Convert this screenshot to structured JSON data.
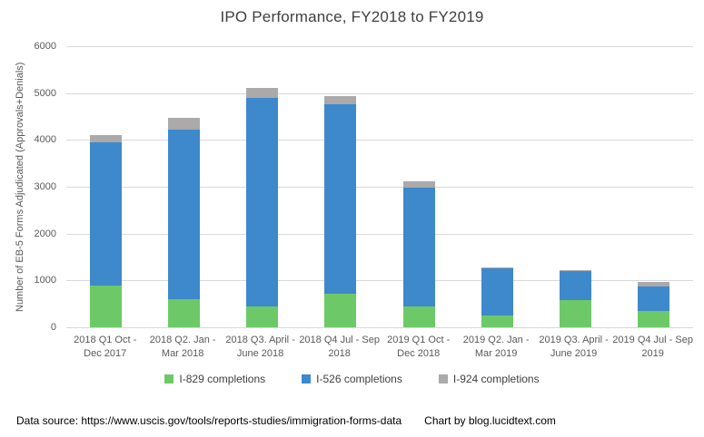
{
  "title": "IPO Performance, FY2018 to FY2019",
  "footer": {
    "data_source": "Data source: https://www.uscis.gov/tools/reports-studies/immigration-forms-data",
    "credit": "Chart by blog.lucidtext.com"
  },
  "colors": {
    "i829_green": "#6DC967",
    "i526_blue": "#3E88CC",
    "i924_gray": "#ABA9A9",
    "gridline": "#D9D9D9",
    "axis_text": "#595959",
    "title_text": "#404040"
  },
  "chart_data": {
    "type": "bar",
    "stacked": true,
    "title": "IPO Performance, FY2018 to FY2019",
    "xlabel": "",
    "ylabel": "Number  of EB-5 Forms Adjudicated (Approvals+Denials)",
    "ylim": [
      0,
      6000
    ],
    "y_ticks": [
      0,
      1000,
      2000,
      3000,
      4000,
      5000,
      6000
    ],
    "grid": true,
    "legend_position": "bottom",
    "categories": [
      {
        "line1": "2018 Q1 Oct -",
        "line2": "Dec 2017"
      },
      {
        "line1": "2018 Q2. Jan -",
        "line2": "Mar 2018"
      },
      {
        "line1": "2018 Q3. April -",
        "line2": "June 2018"
      },
      {
        "line1": "2018 Q4 Jul - Sep",
        "line2": "2018"
      },
      {
        "line1": "2019 Q1 Oct -",
        "line2": "Dec 2018"
      },
      {
        "line1": "2019 Q2. Jan -",
        "line2": "Mar 2019"
      },
      {
        "line1": "2019 Q3. April -",
        "line2": "June 2019"
      },
      {
        "line1": "2019 Q4 Jul - Sep",
        "line2": "2019"
      }
    ],
    "series": [
      {
        "name": "I-829 completions",
        "color": "#6DC967",
        "values": [
          900,
          600,
          450,
          720,
          450,
          260,
          580,
          340
        ]
      },
      {
        "name": "I-526 completions",
        "color": "#3E88CC",
        "values": [
          3040,
          3620,
          4450,
          4050,
          2530,
          1000,
          620,
          540
        ]
      },
      {
        "name": "I-924 completions",
        "color": "#ABA9A9",
        "values": [
          160,
          260,
          210,
          170,
          130,
          20,
          20,
          90
        ]
      }
    ],
    "totals": [
      4100,
      4480,
      5110,
      4940,
      3110,
      1280,
      1220,
      970
    ]
  }
}
